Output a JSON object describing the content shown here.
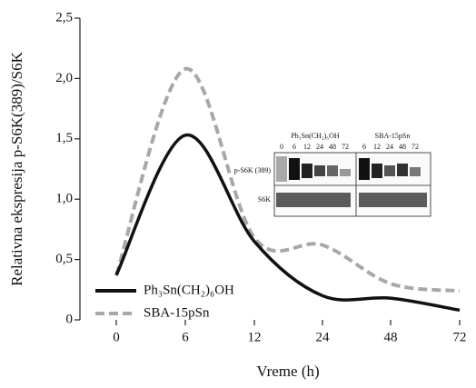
{
  "chart_data": {
    "type": "line",
    "y_label": "Relativna ekspresija p-S6K(389)/S6K",
    "x_label": "Vreme (h)",
    "categories": [
      "0",
      "6",
      "12",
      "24",
      "48",
      "72"
    ],
    "series": [
      {
        "name": "Ph₃Sn(CH₂)₆OH",
        "color": "#111111",
        "dashed": false,
        "values": [
          0.37,
          1.53,
          0.65,
          0.2,
          0.18,
          0.08
        ]
      },
      {
        "name": "SBA-15pSn",
        "color": "#a8a8a8",
        "dashed": true,
        "values": [
          0.37,
          2.08,
          0.68,
          0.62,
          0.3,
          0.24
        ]
      }
    ],
    "ylim": [
      0,
      2.5
    ],
    "yticks": [
      0,
      {
        "value": 0.5,
        "label": "0,5"
      },
      {
        "value": 1.0,
        "label": "1,0"
      },
      {
        "value": 1.5,
        "label": "1,5"
      },
      {
        "value": 2.0,
        "label": "2,0"
      },
      {
        "value": 2.5,
        "label": "2,5"
      }
    ],
    "legend": "lower left",
    "inset": {
      "groups": [
        "Ph₃Sn(CH₂)₆OH",
        "SBA-15pSn"
      ],
      "lanes": [
        "0",
        "6",
        "12",
        "24",
        "48",
        "72",
        "6",
        "12",
        "24",
        "48",
        "72"
      ],
      "rows": [
        "p-S6K (389)",
        "S6K"
      ]
    }
  }
}
